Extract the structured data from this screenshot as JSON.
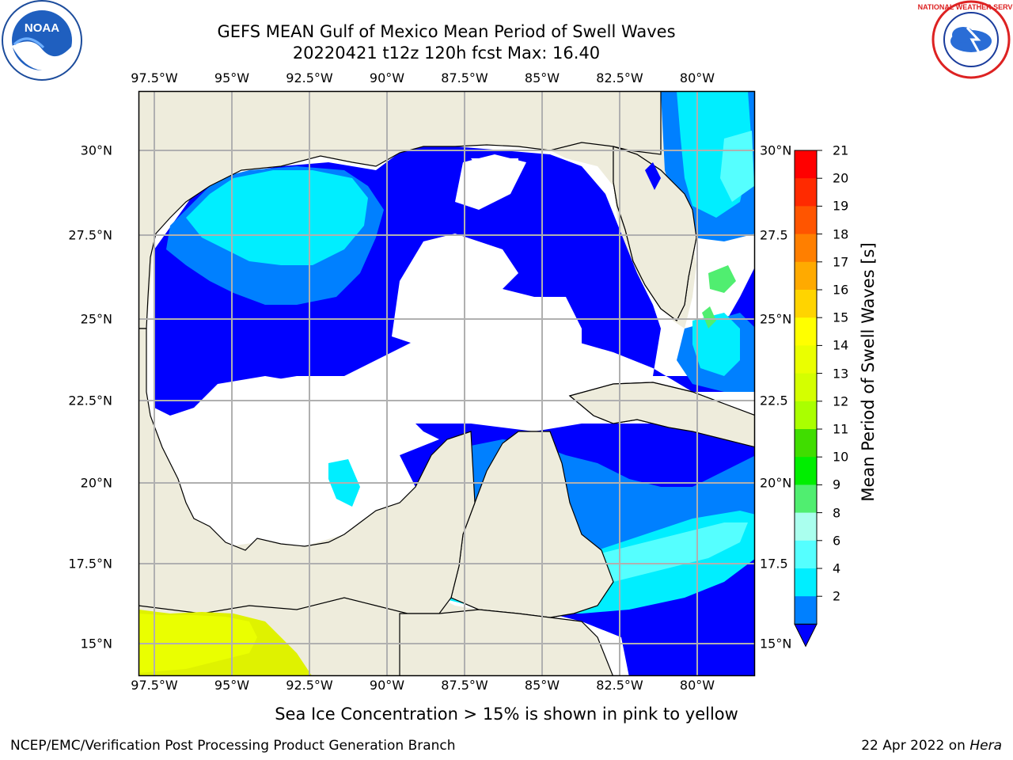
{
  "title": {
    "line1": "GEFS MEAN Gulf of Mexico Mean Period of Swell Waves",
    "line2": "20220421 t12z 120h fcst   Max: 16.40"
  },
  "map": {
    "lon_labels": [
      "97.5°W",
      "95°W",
      "92.5°W",
      "90°W",
      "87.5°W",
      "85°W",
      "82.5°W",
      "80°W"
    ],
    "lat_labels_left": [
      "30°N",
      "27.5°N",
      "25°N",
      "22.5°N",
      "20°N",
      "17.5°N",
      "15°N"
    ],
    "lat_labels_right": [
      "30°N",
      "27.5",
      "25°N",
      "22.5",
      "20°N",
      "17.5",
      "15°N"
    ],
    "land_color": "#eeecdc",
    "grid_color": "#b0b0b0"
  },
  "colorbar": {
    "label": "Mean Period of Swell Waves [s]",
    "ticks": [
      "21",
      "20",
      "19",
      "18",
      "17",
      "16",
      "15",
      "14",
      "13",
      "12",
      "11",
      "10",
      "9",
      "8",
      "6",
      "4",
      "2"
    ],
    "bands": [
      "#ff0000",
      "#ff2a00",
      "#ff5500",
      "#ff7f00",
      "#ffaa00",
      "#ffd400",
      "#ffff00",
      "#eaff00",
      "#d4ff00",
      "#aaff00",
      "#40dd00",
      "#00ee00",
      "#50ee70",
      "#aaffee",
      "#55ffff",
      "#00eeff",
      "#0080ff"
    ],
    "extend_color": "#0000ff"
  },
  "subtitle": "Sea Ice Concentration > 15% is shown in pink to yellow",
  "footer": {
    "left": "NCEP/EMC/Verification Post Processing Product Generation Branch",
    "right_date": "22 Apr 2022 on ",
    "right_host": "Hera"
  },
  "logos": {
    "noaa_text": "NOAA",
    "nws_text": "NATIONAL WEATHER SERVICE"
  }
}
